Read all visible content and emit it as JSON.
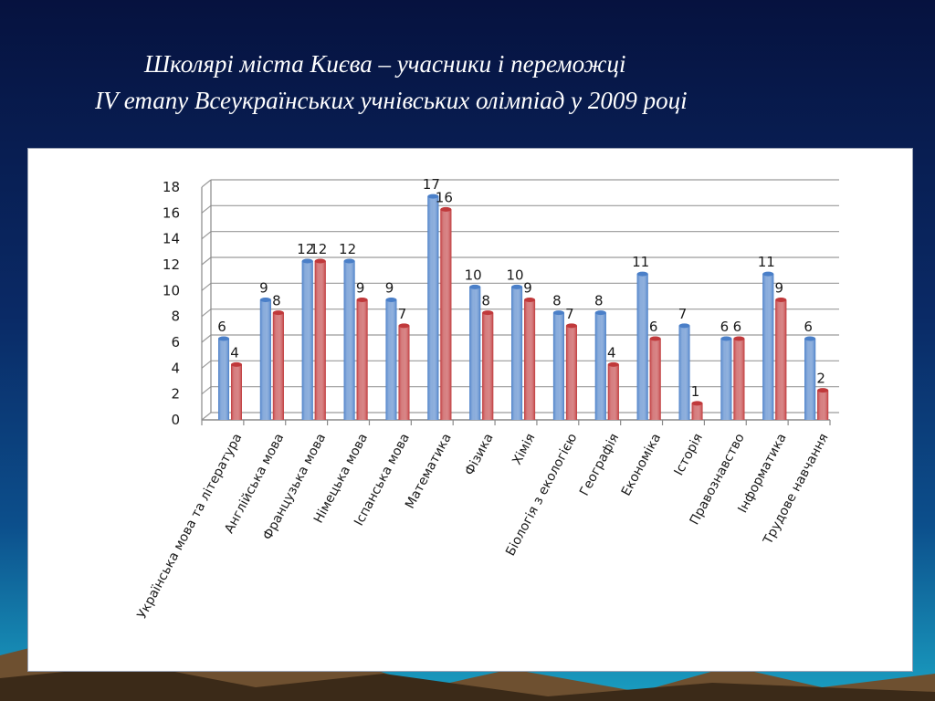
{
  "slide": {
    "title_line1": "Школярі міста Києва – учасники і переможці",
    "title_line2": "IV етапу Всеукраїнських учнівських олімпіад у 2009 році"
  },
  "chart_data": {
    "type": "bar",
    "title": "",
    "xlabel": "",
    "ylabel": "",
    "ylim": [
      0,
      18
    ],
    "yticks": [
      0,
      2,
      4,
      6,
      8,
      10,
      12,
      14,
      16,
      18
    ],
    "grid": true,
    "legend": "none",
    "categories": [
      "Українська мова та література",
      "Англійська мова",
      "Французька мова",
      "Німецька мова",
      "Іспанська мова",
      "Математика",
      "Фізика",
      "Хімія",
      "Біологія з екологією",
      "Географія",
      "Економіка",
      "Історія",
      "Правознавство",
      "Інформатика",
      "Трудове навчання"
    ],
    "series": [
      {
        "color": "#4a7fc8",
        "values": [
          6,
          9,
          12,
          12,
          9,
          17,
          10,
          10,
          8,
          8,
          11,
          7,
          6,
          11,
          6
        ]
      },
      {
        "color": "#c0393b",
        "values": [
          4,
          8,
          12,
          9,
          7,
          16,
          8,
          9,
          7,
          4,
          6,
          1,
          6,
          9,
          2
        ]
      }
    ]
  }
}
